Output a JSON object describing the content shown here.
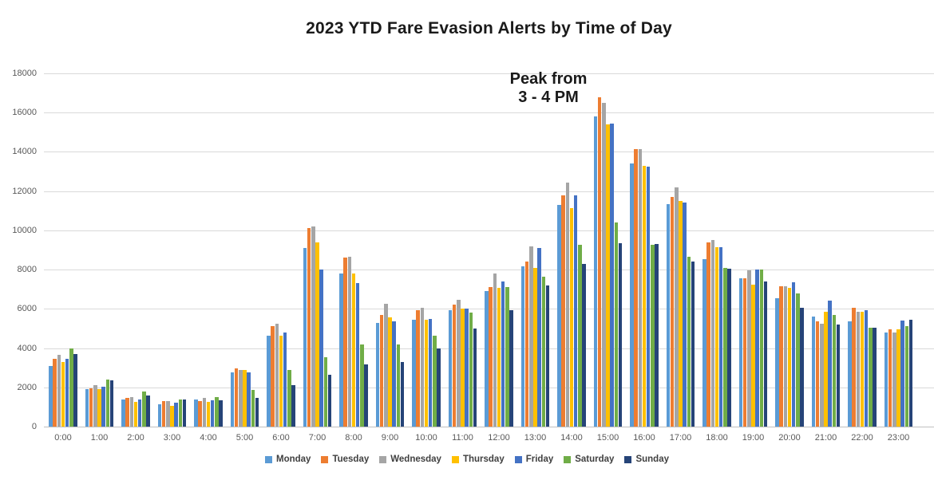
{
  "title": "2023 YTD Fare Evasion Alerts by Time of Day",
  "annotation": {
    "line1": "Peak from",
    "line2": "3 - 4 PM"
  },
  "chart_data": {
    "type": "bar",
    "title": "2023 YTD Fare Evasion Alerts by Time of Day",
    "xlabel": "",
    "ylabel": "",
    "ylim": [
      0,
      18000
    ],
    "ytick_step": 2000,
    "grid": true,
    "legend_position": "bottom",
    "categories": [
      "0:00",
      "1:00",
      "2:00",
      "3:00",
      "4:00",
      "5:00",
      "6:00",
      "7:00",
      "8:00",
      "9:00",
      "10:00",
      "11:00",
      "12:00",
      "13:00",
      "14:00",
      "15:00",
      "16:00",
      "17:00",
      "18:00",
      "19:00",
      "20:00",
      "21:00",
      "22:00",
      "23:00"
    ],
    "series": [
      {
        "name": "Monday",
        "color": "#5B9BD5",
        "values": [
          3100,
          1900,
          1400,
          1150,
          1400,
          2750,
          4650,
          9100,
          7800,
          5300,
          5450,
          5950,
          6900,
          8150,
          11300,
          15800,
          13400,
          11350,
          8550,
          7550,
          6550,
          5600,
          5350,
          4800
        ]
      },
      {
        "name": "Tuesday",
        "color": "#ED7D31",
        "values": [
          3450,
          1950,
          1450,
          1300,
          1300,
          2950,
          5100,
          10100,
          8600,
          5700,
          5950,
          6200,
          7100,
          8400,
          11800,
          16800,
          14150,
          11700,
          9400,
          7550,
          7150,
          5350,
          6050,
          4950
        ]
      },
      {
        "name": "Wednesday",
        "color": "#A5A5A5",
        "values": [
          3650,
          2100,
          1500,
          1280,
          1450,
          2900,
          5250,
          10200,
          8650,
          6250,
          6050,
          6450,
          7800,
          9200,
          12450,
          16500,
          14150,
          12200,
          9500,
          7950,
          7150,
          5250,
          5850,
          4800
        ]
      },
      {
        "name": "Thursday",
        "color": "#FFC000",
        "values": [
          3300,
          1900,
          1250,
          1050,
          1250,
          2900,
          4650,
          9400,
          7800,
          5550,
          5450,
          6000,
          7050,
          8100,
          11150,
          15400,
          13300,
          11500,
          9150,
          7250,
          7050,
          5850,
          5850,
          4950
        ]
      },
      {
        "name": "Friday",
        "color": "#4472C4",
        "values": [
          3450,
          2050,
          1400,
          1200,
          1350,
          2750,
          4800,
          8000,
          7300,
          5350,
          5500,
          6000,
          7400,
          9100,
          11800,
          15450,
          13250,
          11400,
          9150,
          8000,
          7350,
          6400,
          5950,
          5400
        ]
      },
      {
        "name": "Saturday",
        "color": "#70AD47",
        "values": [
          4000,
          2400,
          1800,
          1400,
          1500,
          1850,
          2900,
          3550,
          4200,
          4200,
          4650,
          5800,
          7100,
          7650,
          9250,
          10400,
          9250,
          8650,
          8100,
          8000,
          6800,
          5700,
          5050,
          5100
        ]
      },
      {
        "name": "Sunday",
        "color": "#264478",
        "values": [
          3700,
          2350,
          1600,
          1400,
          1350,
          1450,
          2100,
          2650,
          3150,
          3300,
          4000,
          5000,
          5950,
          7200,
          8300,
          9350,
          9300,
          8400,
          8050,
          7400,
          6050,
          5200,
          5050,
          5450
        ]
      }
    ]
  },
  "axis": {
    "y_tick_labels": [
      "0",
      "2000",
      "4000",
      "6000",
      "8000",
      "10000",
      "12000",
      "14000",
      "16000",
      "18000"
    ]
  },
  "colors": {
    "gridline": "#d9d9d9",
    "axis_line": "#bfbfbf",
    "axis_text": "#595959",
    "title_text": "#1a1a1a",
    "legend_text": "#404040",
    "background": "#ffffff"
  }
}
